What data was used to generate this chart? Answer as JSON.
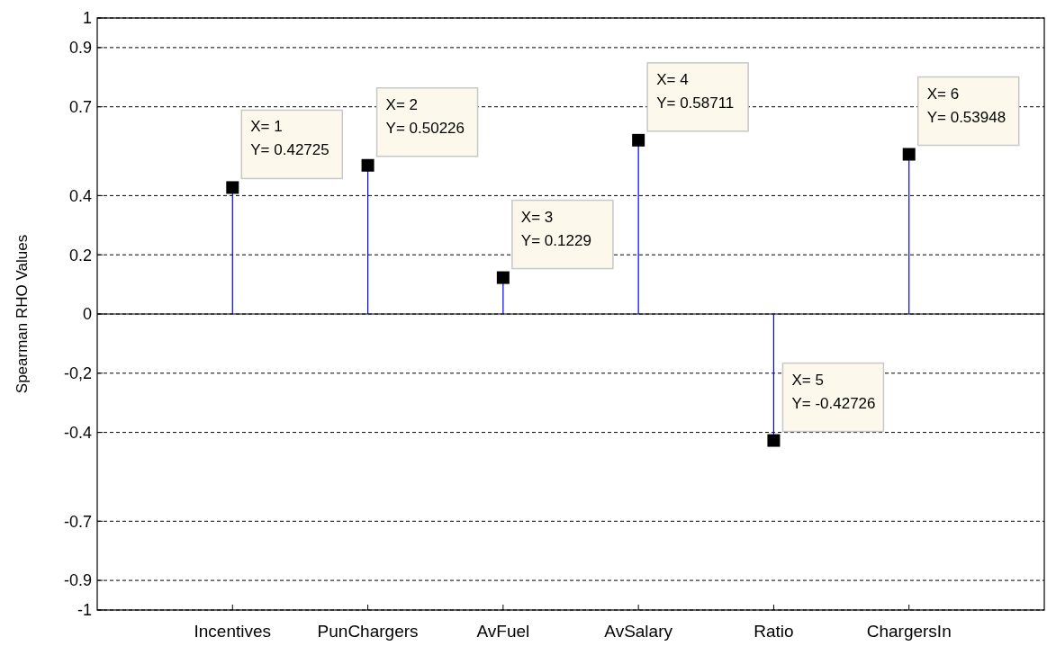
{
  "chart_data": {
    "type": "lollipop",
    "ylabel": "Spearman RHO Values",
    "categories": [
      "Incentives",
      "PunChargers",
      "AvFuel",
      "AvSalary",
      "Ratio",
      "ChargersIn"
    ],
    "series": [
      {
        "color": "#000000",
        "values": [
          0.42725,
          0.50226,
          0.1229,
          0.58711,
          -0.42726,
          0.53948
        ]
      }
    ],
    "ylim": [
      -1,
      1
    ],
    "yticks": [
      -1,
      -0.9,
      -0.7,
      -0.4,
      {
        "value": -0.2,
        "label": "-0,2"
      },
      0,
      0.2,
      0.4,
      0.7,
      0.9,
      1
    ],
    "grid": "y",
    "line_style": "dashed",
    "marker": "square",
    "annotations": [
      {
        "text": "X= 1\nY= 0.42725",
        "x": "Incentives",
        "y": 0.42725
      },
      {
        "text": "X= 2\nY= 0.50226",
        "x": "PunChargers",
        "y": 0.50226
      },
      {
        "text": "X= 3\nY= 0.1229",
        "x": "AvFuel",
        "y": 0.1229
      },
      {
        "text": "X= 4\nY= 0.58711",
        "x": "AvSalary",
        "y": 0.58711
      },
      {
        "text": "X= 5\nY= -0.42726",
        "x": "Ratio",
        "y": -0.42726
      },
      {
        "text": "X= 6\nY= 0.53948",
        "x": "ChargersIn",
        "y": 0.53948
      }
    ]
  }
}
